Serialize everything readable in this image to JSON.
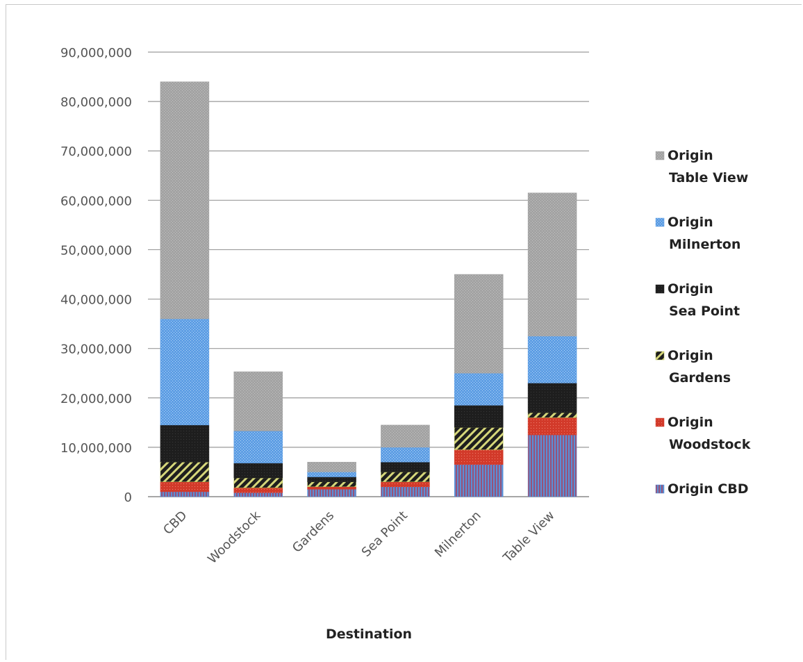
{
  "chart_data": {
    "type": "bar",
    "stacked": true,
    "title": "",
    "xlabel": "Destination",
    "ylabel": "",
    "ylim": [
      0,
      90000000
    ],
    "yticks": [
      "0",
      "10,000,000",
      "20,000,000",
      "30,000,000",
      "40,000,000",
      "50,000,000",
      "60,000,000",
      "70,000,000",
      "80,000,000",
      "90,000,000"
    ],
    "categories": [
      "CBD",
      "Woodstock",
      "Gardens",
      "Sea Point",
      "Milnerton",
      "Table View"
    ],
    "grid": true,
    "legend_position": "right",
    "series": [
      {
        "name": "Origin CBD",
        "line1": "Origin CBD",
        "line2": "",
        "color": "#5b8fd6",
        "values": [
          1000000,
          800000,
          1500000,
          2000000,
          6500000,
          12500000
        ]
      },
      {
        "name": "Origin Woodstock",
        "line1": "Origin",
        "line2": "Woodstock",
        "color": "#d23a2a",
        "values": [
          2000000,
          1000000,
          500000,
          1000000,
          3000000,
          3500000
        ]
      },
      {
        "name": "Origin Gardens",
        "line1": "Origin",
        "line2": "Gardens",
        "color": "#b9c45a",
        "values": [
          4000000,
          2000000,
          1000000,
          2000000,
          4500000,
          1000000
        ]
      },
      {
        "name": "Origin Sea Point",
        "line1": "Origin",
        "line2": "Sea Point",
        "color": "#1e1e1e",
        "values": [
          7500000,
          3000000,
          1000000,
          2000000,
          4500000,
          6000000
        ]
      },
      {
        "name": "Origin Milnerton",
        "line1": "Origin",
        "line2": "Milnerton",
        "color": "#5e9ee4",
        "values": [
          21500000,
          6500000,
          1000000,
          3000000,
          6500000,
          9500000
        ]
      },
      {
        "name": "Origin Table View",
        "line1": "Origin",
        "line2": "Table View",
        "color": "#a3a3a3",
        "values": [
          48000000,
          12000000,
          2000000,
          4500000,
          20000000,
          29000000
        ]
      }
    ]
  }
}
